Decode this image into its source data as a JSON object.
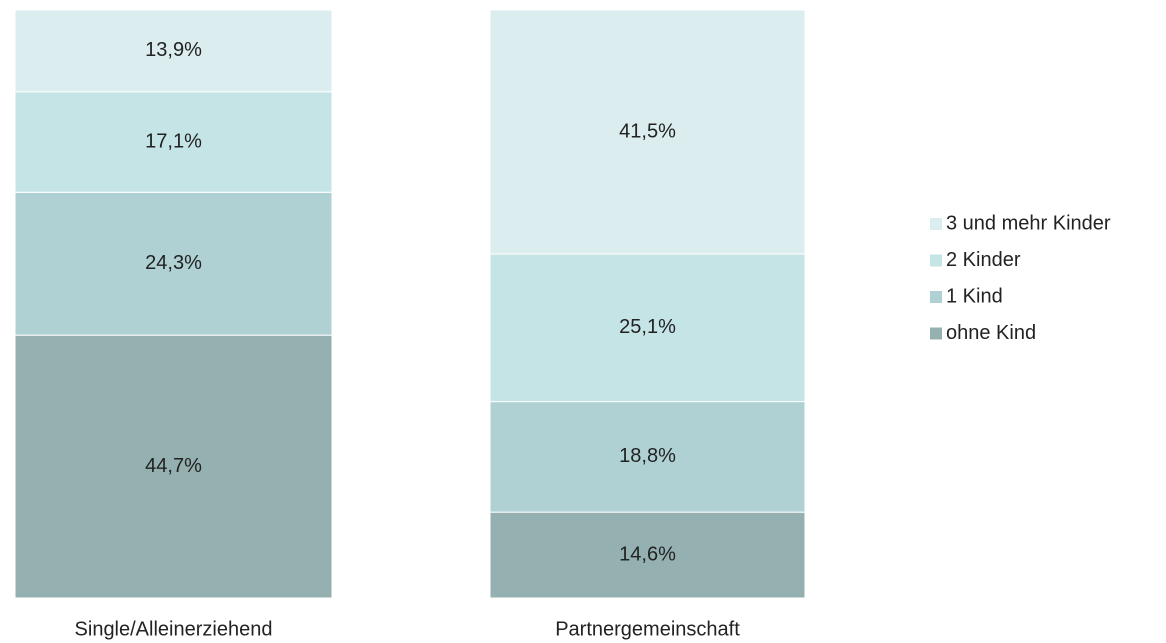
{
  "chart_data": {
    "type": "stacked_bar",
    "categories": [
      "Single/Alleinerziehend",
      "Partnergemeinschaft"
    ],
    "series": [
      {
        "name": "ohne Kind",
        "color": "#95b0b1",
        "values": [
          44.7,
          14.6
        ],
        "value_labels": [
          "44,7%",
          "14,6%"
        ]
      },
      {
        "name": "1 Kind",
        "color": "#afd1d3",
        "values": [
          24.3,
          18.8
        ],
        "value_labels": [
          "24,3%",
          "18,8%"
        ]
      },
      {
        "name": "2 Kinder",
        "color": "#c5e4e6",
        "values": [
          17.1,
          25.1
        ],
        "value_labels": [
          "17,1%",
          "25,1%"
        ]
      },
      {
        "name": "3 und mehr Kinder",
        "color": "#dbedef",
        "values": [
          13.9,
          41.5
        ],
        "value_labels": [
          "13,9%",
          "41,5%"
        ]
      }
    ],
    "ylim": [
      0,
      100
    ],
    "legend": "right"
  }
}
